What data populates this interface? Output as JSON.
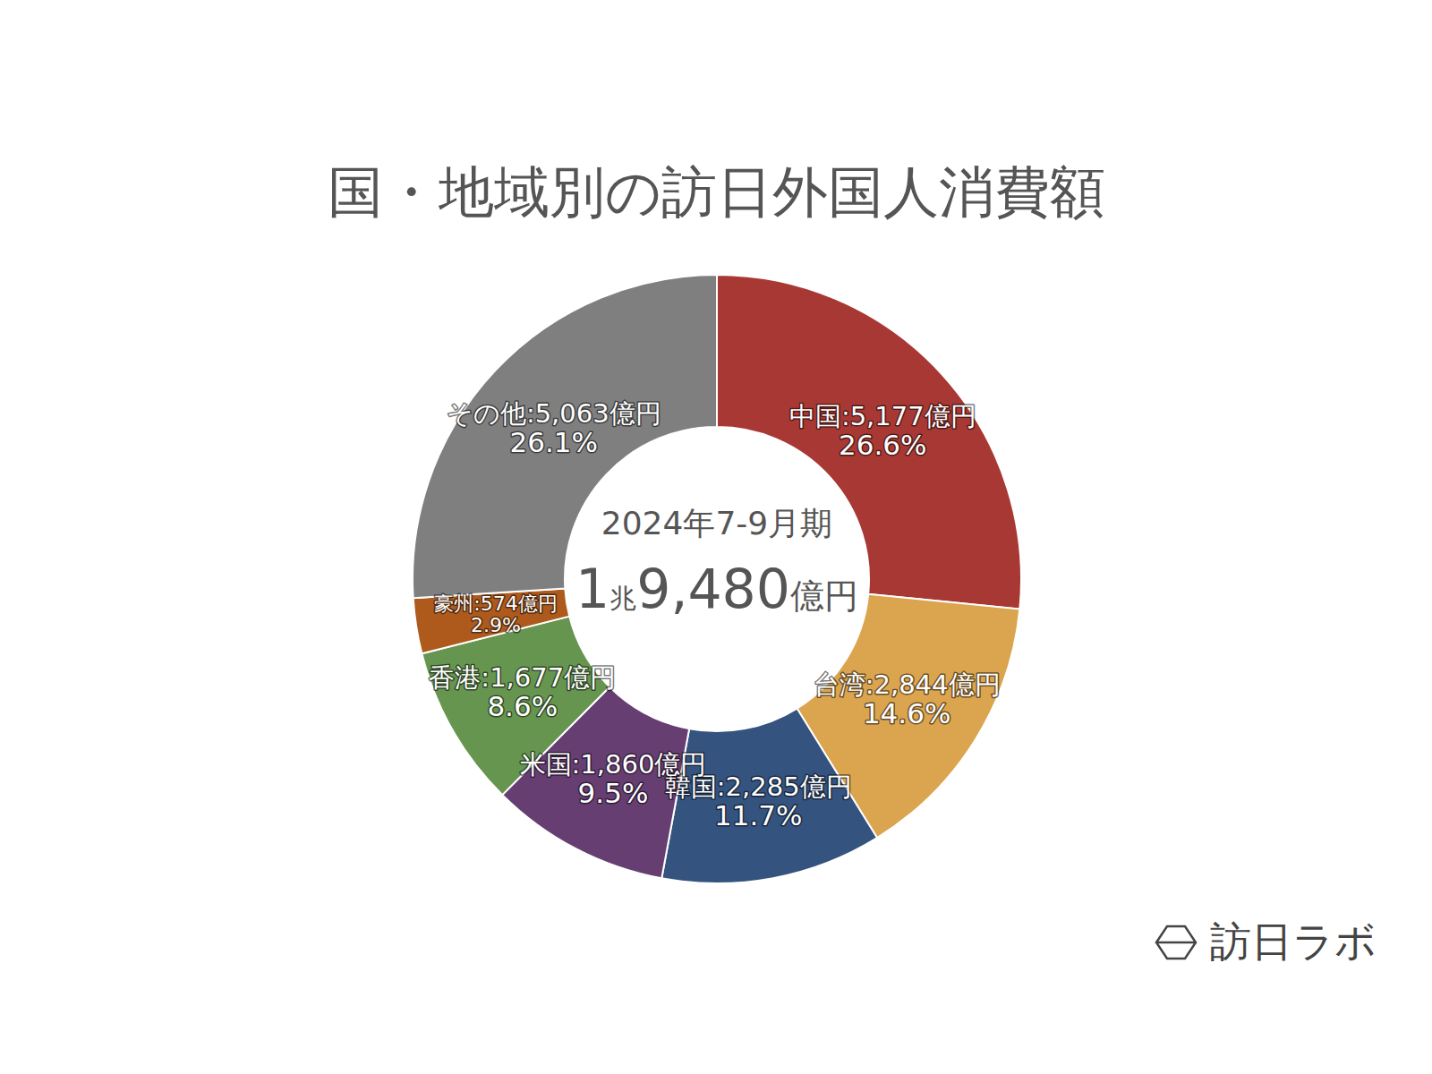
{
  "chart_data": {
    "type": "donut",
    "title": "国・地域別の訪日外国人消費額",
    "categories": [
      "中国",
      "台湾",
      "韓国",
      "米国",
      "香港",
      "豪州",
      "その他"
    ],
    "values": [
      5177,
      2844,
      2285,
      1860,
      1677,
      574,
      5063
    ],
    "label_separator": ":",
    "value_labels": [
      "5,177億円",
      "2,844億円",
      "2,285億円",
      "1,860億円",
      "1,677億円",
      "574億円",
      "5,063億円"
    ],
    "percent_labels": [
      "26.6%",
      "14.6%",
      "11.7%",
      "9.5%",
      "8.6%",
      "2.9%",
      "26.1%"
    ],
    "colors": [
      "#a83833",
      "#dba44e",
      "#34537f",
      "#663e72",
      "#669550",
      "#ae5a1d",
      "#7f7f7f"
    ],
    "data_labels": true,
    "center": {
      "period": "2024年7-9月期",
      "total_parts": [
        "1",
        "兆",
        "9,480",
        "億円"
      ]
    },
    "source": "訪日ラボ"
  }
}
